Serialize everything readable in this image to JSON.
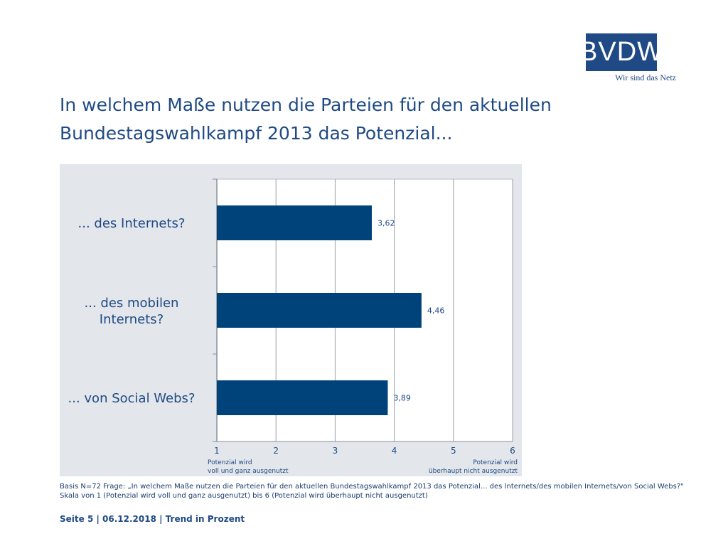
{
  "logo": {
    "text": "BVDW",
    "tagline": "Wir sind das Netz"
  },
  "title_lines": [
    "In welchem Maße nutzen die Parteien für den aktuellen",
    "Bundestagswahlkampf 2013 das Potenzial..."
  ],
  "chart_data": {
    "type": "bar",
    "orientation": "horizontal",
    "categories": [
      "... des Internets?",
      "... des mobilen Internets?",
      "... von Social Webs?"
    ],
    "category_lines": [
      [
        "... des Internets?"
      ],
      [
        "... des mobilen",
        "Internets?"
      ],
      [
        "... von Social Webs?"
      ]
    ],
    "values": [
      3.62,
      4.46,
      3.89
    ],
    "value_labels": [
      "3,62",
      "4,46",
      "3,89"
    ],
    "xlim": [
      1,
      6
    ],
    "xticks": [
      1,
      2,
      3,
      4,
      5,
      6
    ],
    "grid": true,
    "bar_color": "#00427a",
    "x_end_labels": {
      "left": [
        "Potenzial wird",
        "voll und ganz ausgenutzt"
      ],
      "right": [
        "Potenzial wird",
        "überhaupt nicht ausgenutzt"
      ]
    }
  },
  "basis_lines": [
    "Basis N=72 Frage: „In welchem Maße nutzen die Parteien für den aktuellen Bundestagswahlkampf 2013 das Potenzial... des Internets/des mobilen Internets/von Social Webs?\"",
    "Skala von 1 (Potenzial wird voll und ganz ausgenutzt) bis 6 (Potenzial wird überhaupt nicht ausgenutzt)"
  ],
  "footer": "Seite 5 | 06.12.2018 | Trend in Prozent"
}
